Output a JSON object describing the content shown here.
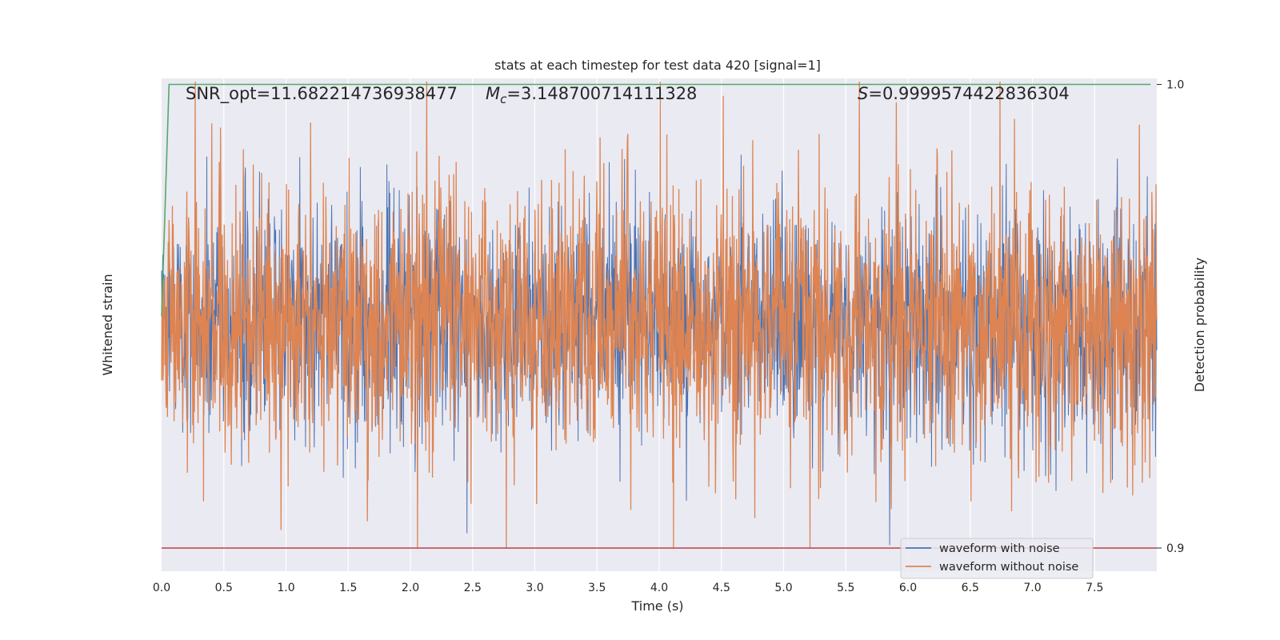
{
  "chart_data": {
    "type": "line",
    "title": "stats at each timestep for test data 420 [signal=1]",
    "xlabel": "Time (s)",
    "ylabel_left": "Whitened strain",
    "ylabel_right": "Detection probability",
    "xlim": [
      0.0,
      8.0
    ],
    "xticks": [
      "0.0",
      "0.5",
      "1.0",
      "1.5",
      "2.0",
      "2.5",
      "3.0",
      "3.5",
      "4.0",
      "4.5",
      "5.0",
      "5.5",
      "6.0",
      "6.5",
      "7.0",
      "7.5"
    ],
    "right_yticks": [
      "1.0",
      "0.9"
    ],
    "right_ylim": [
      0.895,
      1.0013
    ],
    "grid": true,
    "annotations": {
      "snr": "SNR_opt=11.682214736938477",
      "mc_symbol": "M",
      "mc_sub": "c",
      "mc_value": "=3.148700714111328",
      "s_symbol": "S",
      "s_value": "=0.9999574422836304"
    },
    "legend": {
      "placement": "lower-right",
      "entries": [
        "waveform with noise",
        "waveform without noise"
      ]
    },
    "series": [
      {
        "name": "waveform with noise",
        "color": "#4c72b0",
        "style": "whitened strain noise, symmetric about zero"
      },
      {
        "name": "waveform without noise",
        "color": "#dd8452",
        "style": "dense trace spanning nearly the full axis height"
      },
      {
        "color": "#55a868",
        "x": [
          0.0,
          0.06,
          0.1,
          0.2,
          7.95
        ],
        "y": [
          0.95,
          1.0,
          1.0,
          1.0,
          1.0
        ]
      },
      {
        "color": "#c44e52",
        "x": [
          0.0,
          8.0
        ],
        "y": [
          0.9,
          0.9
        ]
      }
    ],
    "colors": {
      "background": "#eaeaf2",
      "grid": "#ffffff",
      "noise": "#4c72b0",
      "signal": "#dd8452",
      "probability": "#55a868",
      "threshold": "#c44e52"
    }
  }
}
